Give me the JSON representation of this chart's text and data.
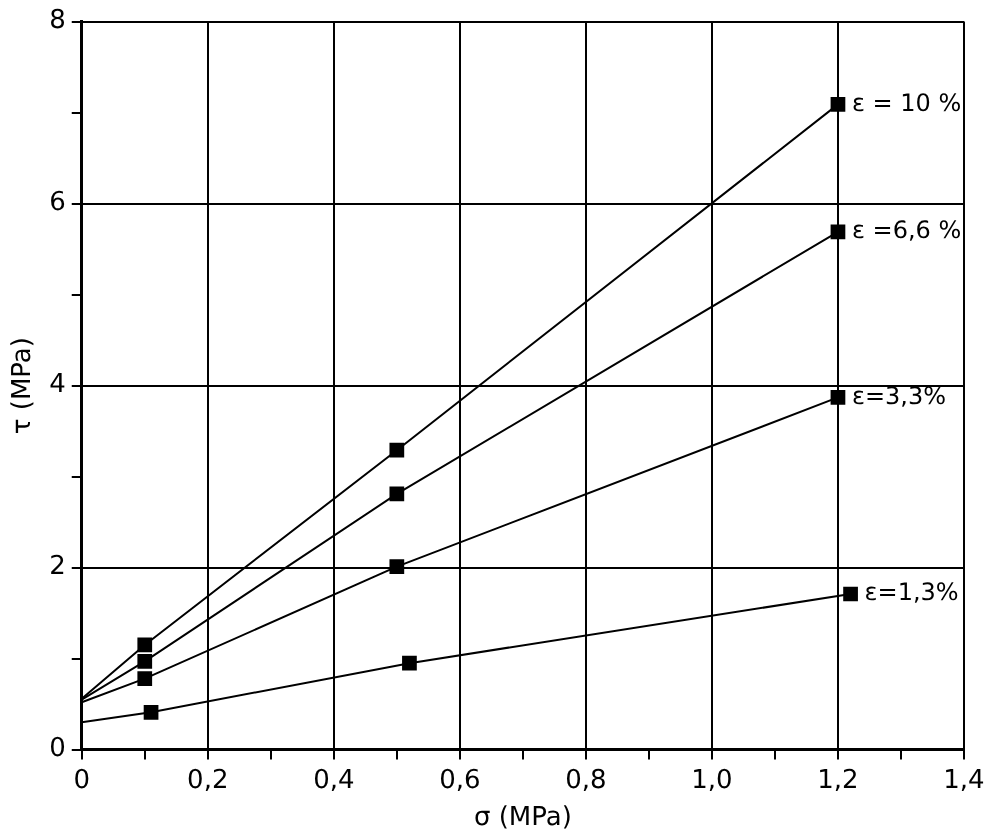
{
  "chart_data": {
    "type": "line",
    "xlabel": "σ (MPa)",
    "ylabel": "τ (MPa)",
    "x": [
      0,
      0.1,
      0.5,
      1.2
    ],
    "series": [
      {
        "name": "ε = 10 %",
        "color": "#000000",
        "values": [
          0.56,
          1.15,
          3.29,
          7.09
        ]
      },
      {
        "name": "ε =6,6 %",
        "color": "#000000",
        "values": [
          0.55,
          0.97,
          2.81,
          5.69
        ]
      },
      {
        "name": "ε=3,3%",
        "color": "#000000",
        "values": [
          0.52,
          0.78,
          2.01,
          3.87
        ]
      },
      {
        "name": "ε=1,3%",
        "color": "#000000",
        "x": [
          0,
          0.11,
          0.52,
          1.22
        ],
        "values": [
          0.3,
          0.41,
          0.95,
          1.71
        ]
      }
    ],
    "xlim": [
      0,
      1.4
    ],
    "ylim": [
      0,
      8
    ],
    "xticks": [
      0,
      {
        "value": 0.1,
        "label": null
      },
      {
        "value": 0.2,
        "label": "0,2"
      },
      {
        "value": 0.3,
        "label": null
      },
      {
        "value": 0.4,
        "label": "0,4"
      },
      {
        "value": 0.5,
        "label": null
      },
      {
        "value": 0.6,
        "label": "0,6"
      },
      {
        "value": 0.7,
        "label": null
      },
      {
        "value": 0.8,
        "label": "0,8"
      },
      {
        "value": 0.9,
        "label": null
      },
      {
        "value": 1.0,
        "label": "1,0"
      },
      {
        "value": 1.1,
        "label": null
      },
      {
        "value": 1.2,
        "label": "1,2"
      },
      {
        "value": 1.3,
        "label": null
      },
      {
        "value": 1.4,
        "label": "1,4"
      }
    ],
    "yticks": [
      0,
      {
        "value": 1,
        "label": null
      },
      2,
      {
        "value": 3,
        "label": null
      },
      4,
      {
        "value": 5,
        "label": null
      },
      6,
      {
        "value": 7,
        "label": null
      },
      8
    ],
    "grid": true,
    "legend": false,
    "marker": "square",
    "line_style": "solid"
  }
}
